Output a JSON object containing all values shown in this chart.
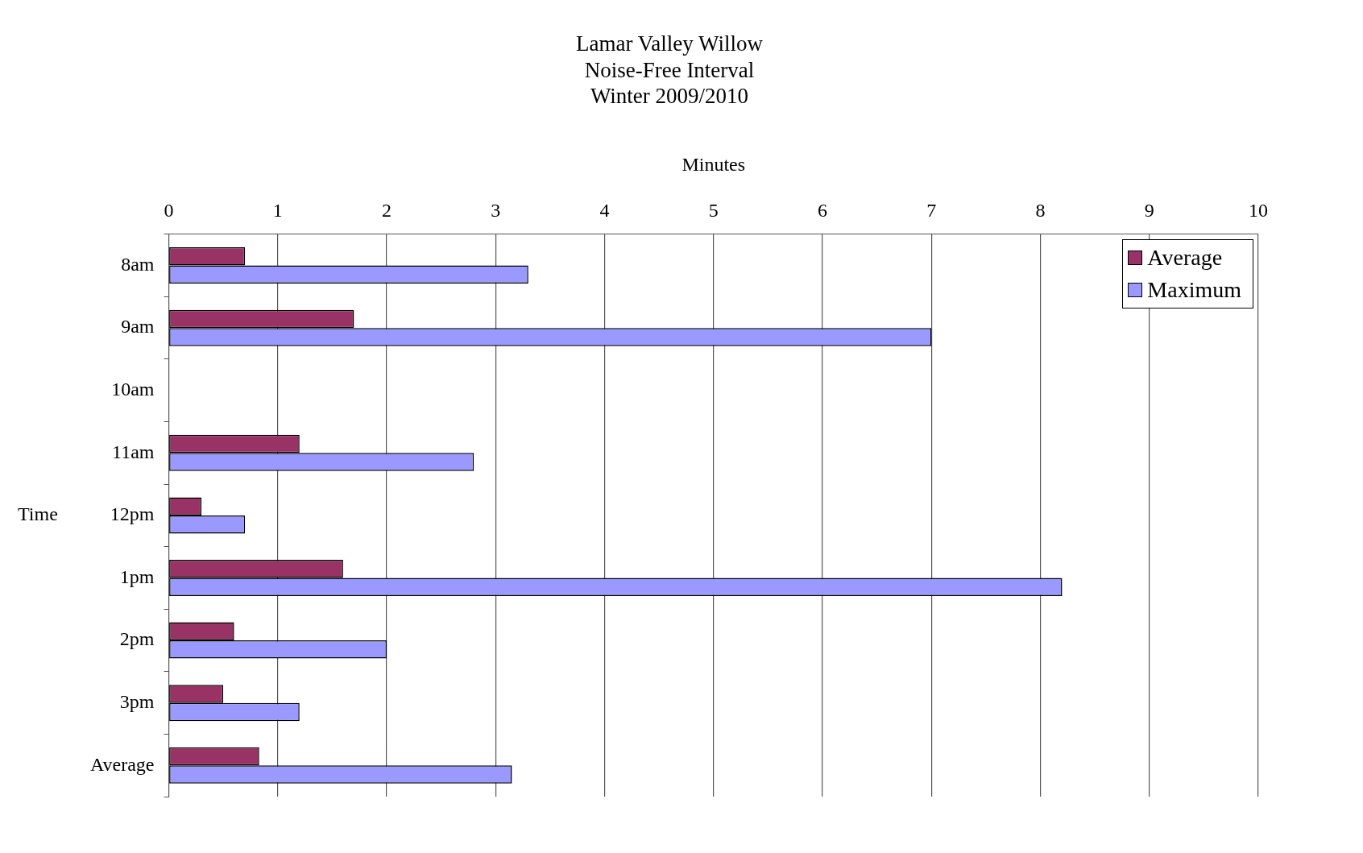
{
  "chart_data": {
    "type": "bar",
    "orientation": "horizontal",
    "title": "Lamar Valley Willow\nNoise-Free Interval\nWinter 2009/2010",
    "xlabel": "Minutes",
    "ylabel": "Time",
    "categories": [
      "8am",
      "9am",
      "10am",
      "11am",
      "12pm",
      "1pm",
      "2pm",
      "3pm",
      "Average"
    ],
    "series": [
      {
        "name": "Average",
        "color": "#993366",
        "values": [
          0.7,
          1.7,
          null,
          1.2,
          0.3,
          1.6,
          0.6,
          0.5,
          0.83
        ]
      },
      {
        "name": "Maximum",
        "color": "#9999ff",
        "values": [
          3.3,
          7.0,
          null,
          2.8,
          0.7,
          8.2,
          2.0,
          1.2,
          3.15
        ]
      }
    ],
    "xlim": [
      0,
      10
    ],
    "xticks": [
      0,
      1,
      2,
      3,
      4,
      5,
      6,
      7,
      8,
      9,
      10
    ],
    "grid": "x",
    "legend": "top right"
  }
}
